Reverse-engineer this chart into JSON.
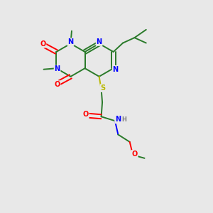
{
  "bg_color": "#e8e8e8",
  "bond_color": "#2a7a2a",
  "N_color": "#0000ff",
  "O_color": "#ff0000",
  "S_color": "#b8b800",
  "H_color": "#808080",
  "lw": 1.4,
  "fs": 7.0,
  "xlim": [
    0,
    10
  ],
  "ylim": [
    0,
    10
  ]
}
